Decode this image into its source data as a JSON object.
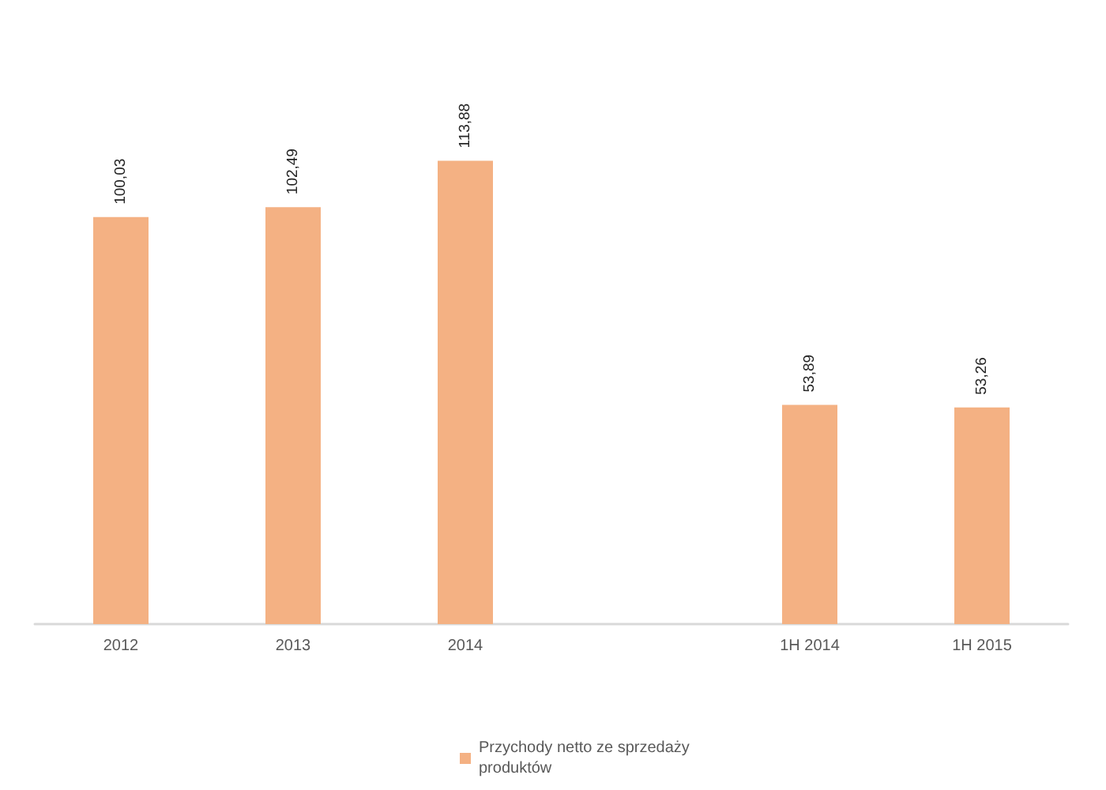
{
  "chart_data": {
    "type": "bar",
    "categories": [
      "2012",
      "2013",
      "2014",
      null,
      "1H 2014",
      "1H 2015"
    ],
    "series": [
      {
        "name": "Przychody netto ze sprzedaży produktów",
        "color": "#f4b183",
        "values": [
          100.03,
          102.49,
          113.88,
          null,
          53.89,
          53.26
        ],
        "value_labels": [
          "100,03",
          "102,49",
          "113,88",
          null,
          "53,89",
          "53,26"
        ]
      }
    ],
    "legend": "bottom",
    "grid": false
  }
}
